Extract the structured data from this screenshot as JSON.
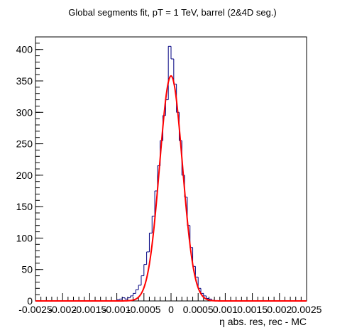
{
  "chart_data": {
    "type": "histogram",
    "title": "Global segments fit, pT = 1 TeV, barrel (2&4D seg.)",
    "xlabel": "η abs. res, rec - MC",
    "ylabel": "",
    "xlim": [
      -0.0025,
      0.0025
    ],
    "ylim": [
      0,
      420
    ],
    "x_ticks": [
      -0.0025,
      -0.002,
      -0.0015,
      -0.001,
      -0.0005,
      0,
      0.0005,
      0.001,
      0.0015,
      0.002,
      0.0025
    ],
    "x_tick_labels": [
      "-0.0025",
      "-0.002",
      "-0.0015",
      "-0.001",
      "-0.0005",
      "0",
      "0.0005",
      "0.001",
      "0.0015",
      "0.002",
      "0.0025"
    ],
    "y_ticks": [
      0,
      50,
      100,
      150,
      200,
      250,
      300,
      350,
      400
    ],
    "y_tick_labels": [
      "0",
      "50",
      "100",
      "150",
      "200",
      "250",
      "300",
      "350",
      "400"
    ],
    "histogram": {
      "bin_width": 5e-05,
      "bin_centers": [
        -0.000975,
        -0.000925,
        -0.000875,
        -0.000825,
        -0.000775,
        -0.000725,
        -0.000675,
        -0.000625,
        -0.000575,
        -0.000525,
        -0.000475,
        -0.000425,
        -0.000375,
        -0.000325,
        -0.000275,
        -0.000225,
        -0.000175,
        -0.000125,
        -7.5e-05,
        -2.5e-05,
        2.5e-05,
        7.5e-05,
        0.000125,
        0.000175,
        0.000225,
        0.000275,
        0.000325,
        0.000375,
        0.000425,
        0.000475,
        0.000525,
        0.000575,
        0.000625,
        0.000675,
        0.000725,
        0.000775
      ],
      "counts": [
        2,
        3,
        5,
        3,
        5,
        8,
        12,
        18,
        25,
        40,
        58,
        78,
        108,
        135,
        175,
        215,
        255,
        295,
        320,
        405,
        385,
        345,
        300,
        255,
        200,
        165,
        120,
        85,
        55,
        38,
        20,
        12,
        8,
        4,
        3,
        1
      ],
      "color": "#000080"
    },
    "fit": {
      "function": "gaussian",
      "amplitude": 358,
      "mean": 0.0,
      "sigma": 0.00021,
      "color": "#ff0000"
    },
    "grid": false,
    "legend": "none"
  }
}
